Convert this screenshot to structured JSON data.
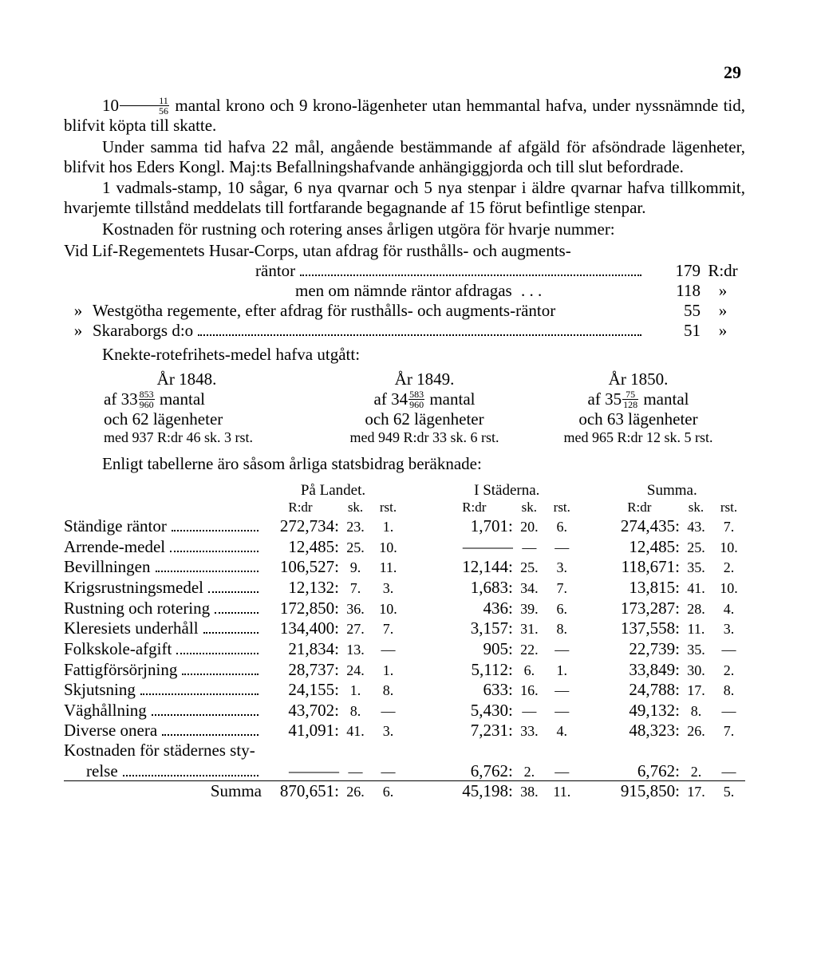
{
  "page_number": "29",
  "paragraphs": {
    "p1_a": "10",
    "p1_frac_n": "11",
    "p1_frac_d": "56",
    "p1_b": " mantal krono och 9 krono-lägenheter utan hemmantal hafva, under nyssnämnde tid, blifvit köpta till skatte.",
    "p2": "Under samma tid hafva 22 mål, angående bestämmande af afgäld för afsöndrade lägenheter, blifvit hos Eders Kongl. Maj:ts Befallningshafvande anhängiggjorda och till slut befordrade.",
    "p3": "1 vadmals-stamp, 10 sågar, 6 nya qvarnar och 5 nya stenpar i äldre qvarnar hafva tillkommit, hvarjemte tillstånd meddelats till fortfarande begagnande af 15 förut befintlige stenpar.",
    "p4": "Kostnaden för rustning och rotering anses årligen utgöra för hvarje nummer:"
  },
  "rantor": {
    "r1_label": "Vid Lif-Regementets Husar-Corps, utan afdrag för rusthålls- och augments-",
    "r1b_label": "räntor",
    "r1_val": "179",
    "r1_unit": "R:dr",
    "r2_label": "men om nämnde räntor afdragas",
    "r2_val": "118",
    "r2_unit": "»",
    "r3_label": "Westgötha regemente, efter afdrag för rusthålls- och augments-räntor",
    "r3_val": "55",
    "r3_unit": "»",
    "r4_label": "Skaraborgs d:o",
    "r4_val": "51",
    "r4_unit": "»"
  },
  "knekte_header": "Knekte-rotefrihets-medel hafva utgått:",
  "knekte": [
    {
      "year": "År 1848.",
      "mantal_a": "af 33",
      "mantal_n": "853",
      "mantal_d": "960",
      "mantal_b": " mantal",
      "lag": "och 62 lägenheter",
      "med": "med 937 R:dr 46 sk. 3 rst."
    },
    {
      "year": "År 1849.",
      "mantal_a": "af 34",
      "mantal_n": "583",
      "mantal_d": "960",
      "mantal_b": " mantal",
      "lag": "och 62 lägenheter",
      "med": "med 949 R:dr 33 sk. 6 rst."
    },
    {
      "year": "År 1850.",
      "mantal_a": "af 35",
      "mantal_n": "75",
      "mantal_d": "128",
      "mantal_b": " mantal",
      "lag": "och 63 lägenheter",
      "med": "med 965 R:dr 12 sk. 5 rst."
    }
  ],
  "stats_intro": "Enligt tabellerne äro såsom årliga statsbidrag beräknade:",
  "headers": {
    "g1": "På Landet.",
    "g2": "I Städerna.",
    "g3": "Summa.",
    "rdr": "R:dr",
    "sk": "sk.",
    "rst": "rst."
  },
  "rows": [
    {
      "label": "Ständige räntor",
      "l": [
        "272,734:",
        "23.",
        "1."
      ],
      "s": [
        "1,701:",
        "20.",
        "6."
      ],
      "t": [
        "274,435:",
        "43.",
        "7."
      ]
    },
    {
      "label": "Arrende-medel",
      "l": [
        "12,485:",
        "25.",
        "10."
      ],
      "s": [
        "———",
        "—",
        "—"
      ],
      "t": [
        "12,485:",
        "25.",
        "10."
      ]
    },
    {
      "label": "Bevillningen",
      "l": [
        "106,527:",
        "9.",
        "11."
      ],
      "s": [
        "12,144:",
        "25.",
        "3."
      ],
      "t": [
        "118,671:",
        "35.",
        "2."
      ]
    },
    {
      "label": "Krigsrustningsmedel",
      "l": [
        "12,132:",
        "7.",
        "3."
      ],
      "s": [
        "1,683:",
        "34.",
        "7."
      ],
      "t": [
        "13,815:",
        "41.",
        "10."
      ]
    },
    {
      "label": "Rustning och rotering",
      "l": [
        "172,850:",
        "36.",
        "10."
      ],
      "s": [
        "436:",
        "39.",
        "6."
      ],
      "t": [
        "173,287:",
        "28.",
        "4."
      ]
    },
    {
      "label": "Kleresiets underhåll",
      "l": [
        "134,400:",
        "27.",
        "7."
      ],
      "s": [
        "3,157:",
        "31.",
        "8."
      ],
      "t": [
        "137,558:",
        "11.",
        "3."
      ]
    },
    {
      "label": "Folkskole-afgift",
      "l": [
        "21,834:",
        "13.",
        "—"
      ],
      "s": [
        "905:",
        "22.",
        "—"
      ],
      "t": [
        "22,739:",
        "35.",
        "—"
      ]
    },
    {
      "label": "Fattigförsörjning",
      "l": [
        "28,737:",
        "24.",
        "1."
      ],
      "s": [
        "5,112:",
        "6.",
        "1."
      ],
      "t": [
        "33,849:",
        "30.",
        "2."
      ]
    },
    {
      "label": "Skjutsning",
      "l": [
        "24,155:",
        "1.",
        "8."
      ],
      "s": [
        "633:",
        "16.",
        "—"
      ],
      "t": [
        "24,788:",
        "17.",
        "8."
      ]
    },
    {
      "label": "Väghållning",
      "l": [
        "43,702:",
        "8.",
        "—"
      ],
      "s": [
        "5,430:",
        "—",
        "—"
      ],
      "t": [
        "49,132:",
        "8.",
        "—"
      ]
    },
    {
      "label": "Diverse onera",
      "l": [
        "41,091:",
        "41.",
        "3."
      ],
      "s": [
        "7,231:",
        "33.",
        "4."
      ],
      "t": [
        "48,323:",
        "26.",
        "7."
      ]
    }
  ],
  "row_kost_a": "Kostnaden för städernes sty-",
  "row_kost_b": "relse",
  "row_kost": {
    "l": [
      "———",
      "—",
      "—"
    ],
    "s": [
      "6,762:",
      "2.",
      "—"
    ],
    "t": [
      "6,762:",
      "2.",
      "—"
    ]
  },
  "sum_label": "Summa",
  "sum": {
    "l": [
      "870,651:",
      "26.",
      "6."
    ],
    "s": [
      "45,198:",
      "38.",
      "11."
    ],
    "t": [
      "915,850:",
      "17.",
      "5."
    ]
  }
}
